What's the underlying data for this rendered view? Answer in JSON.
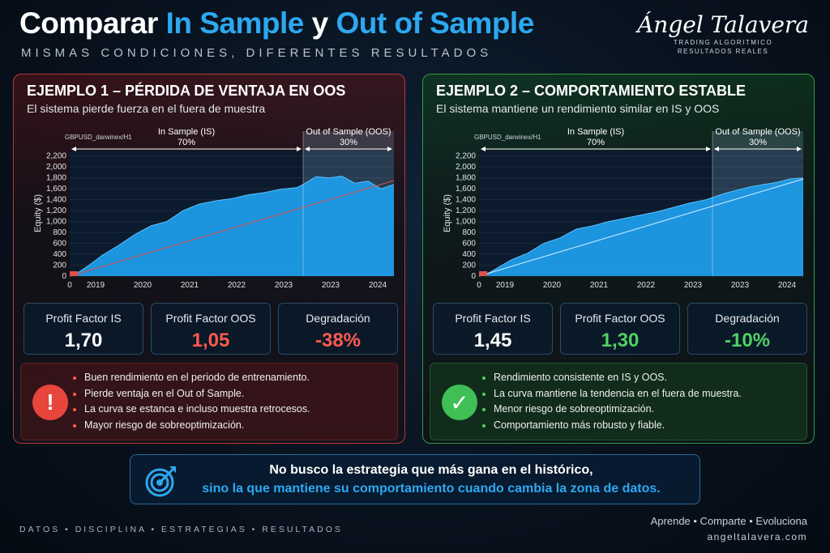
{
  "header": {
    "title_part1": "Comparar ",
    "title_hl1": "In Sample",
    "title_mid": " y ",
    "title_hl2": "Out of Sample",
    "subtitle": "MISMAS CONDICIONES, DIFERENTES RESULTADOS"
  },
  "brand": {
    "signature": "Ángel Talavera",
    "line1": "TRADING ALGORITMICO",
    "line2": "RESULTADOS REALES"
  },
  "panels": [
    {
      "title": "EJEMPLO 1 – PÉRDIDA DE VENTAJA EN OOS",
      "description": "El sistema pierde fuerza en el fuera de muestra",
      "metrics": [
        {
          "label": "Profit Factor IS",
          "value": "1,70",
          "color": "#ffffff"
        },
        {
          "label": "Profit Factor OOS",
          "value": "1,05",
          "color": "#ff5a4e"
        },
        {
          "label": "Degradación",
          "value": "-38%",
          "color": "#ff5a4e"
        }
      ],
      "badge": "!",
      "notes": [
        "Buen rendimiento en el periodo de entrenamiento.",
        "Pierde ventaja en el Out of Sample.",
        "La curva se estanca e incluso muestra retrocesos.",
        "Mayor riesgo de sobreoptimización."
      ]
    },
    {
      "title": "EJEMPLO 2 – COMPORTAMIENTO ESTABLE",
      "description": "El sistema mantiene un rendimiento similar en IS y OOS",
      "metrics": [
        {
          "label": "Profit Factor IS",
          "value": "1,45",
          "color": "#ffffff"
        },
        {
          "label": "Profit Factor OOS",
          "value": "1,30",
          "color": "#4fd162"
        },
        {
          "label": "Degradación",
          "value": "-10%",
          "color": "#4fd162"
        }
      ],
      "badge": "✓",
      "notes": [
        "Rendimiento consistente en IS y OOS.",
        "La curva mantiene la tendencia en el fuera de muestra.",
        "Menor riesgo de sobreoptimización.",
        "Comportamiento más robusto y fiable."
      ]
    }
  ],
  "chart_data": [
    {
      "type": "area",
      "symbol": "GBPUSD_darwinex/H1",
      "ylabel": "Equity ($)",
      "ylim": [
        0,
        2300
      ],
      "yticks": [
        "0",
        "200",
        "400",
        "600",
        "800",
        "1,000",
        "1,200",
        "1,400",
        "1,600",
        "1,800",
        "2,000",
        "2,200"
      ],
      "xticks": [
        "0",
        "2019",
        "2020",
        "2021",
        "2022",
        "2023",
        "2023",
        "2024"
      ],
      "is_label": "In Sample (IS)",
      "is_pct": "70%",
      "oos_label": "Out of Sample (OOS)",
      "oos_pct": "30%",
      "oos_start_fraction": 0.72,
      "trend_line": [
        [
          0,
          0
        ],
        [
          1,
          1750
        ]
      ],
      "x": [
        0,
        0.03,
        0.06,
        0.1,
        0.15,
        0.2,
        0.25,
        0.3,
        0.35,
        0.4,
        0.45,
        0.5,
        0.55,
        0.6,
        0.65,
        0.7,
        0.72,
        0.76,
        0.8,
        0.84,
        0.88,
        0.92,
        0.96,
        1.0
      ],
      "values": [
        0,
        80,
        200,
        380,
        560,
        760,
        920,
        1000,
        1200,
        1320,
        1380,
        1420,
        1490,
        1530,
        1590,
        1620,
        1680,
        1820,
        1800,
        1830,
        1700,
        1740,
        1600,
        1680
      ]
    },
    {
      "type": "area",
      "symbol": "GBPUSD_darwinex/H1",
      "ylabel": "Equity ($)",
      "ylim": [
        0,
        2300
      ],
      "yticks": [
        "0",
        "200",
        "400",
        "600",
        "800",
        "1,000",
        "1,200",
        "1,400",
        "1,600",
        "1,800",
        "2,000",
        "2,200"
      ],
      "xticks": [
        "0",
        "2019",
        "2020",
        "2021",
        "2022",
        "2023",
        "2023",
        "2024"
      ],
      "is_label": "In Sample (IS)",
      "is_pct": "70%",
      "oos_label": "Out of Sample (OOS)",
      "oos_pct": "30%",
      "oos_start_fraction": 0.72,
      "trend_line": [
        [
          0,
          0
        ],
        [
          1,
          1780
        ]
      ],
      "x": [
        0,
        0.03,
        0.06,
        0.1,
        0.15,
        0.2,
        0.25,
        0.3,
        0.35,
        0.4,
        0.45,
        0.5,
        0.55,
        0.6,
        0.65,
        0.7,
        0.72,
        0.76,
        0.8,
        0.84,
        0.88,
        0.92,
        0.96,
        1.0
      ],
      "values": [
        0,
        60,
        160,
        300,
        420,
        600,
        700,
        860,
        920,
        1000,
        1060,
        1120,
        1180,
        1260,
        1340,
        1400,
        1440,
        1520,
        1580,
        1640,
        1680,
        1720,
        1780,
        1800
      ]
    }
  ],
  "quote": {
    "line1": "No busco la estrategia que más gana en el histórico,",
    "line2": "sino la que mantiene su comportamiento cuando cambia la zona de datos."
  },
  "footer": {
    "left": "DATOS  •  DISCIPLINA  •  ESTRATEGIAS  •  RESULTADOS",
    "right1": "Aprende  •  Comparte  •  Evoluciona",
    "right2": "angeltalavera.com"
  },
  "colors": {
    "accent": "#2ea8f0",
    "area": "#1e9be8",
    "bad": "#e8453c",
    "good": "#3fbf55"
  }
}
